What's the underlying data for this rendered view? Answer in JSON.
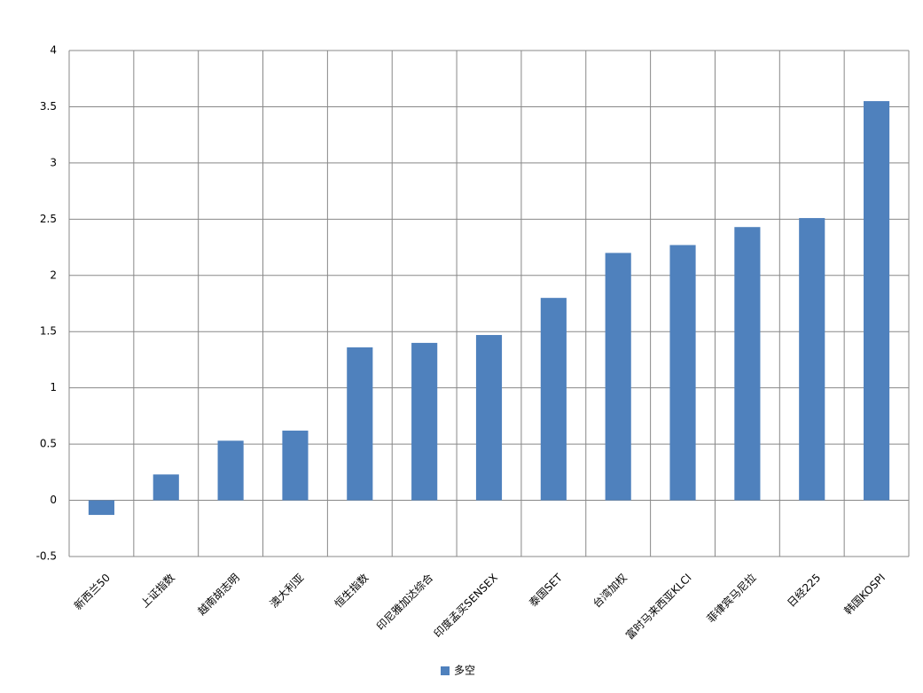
{
  "chart_data": {
    "type": "bar",
    "categories": [
      "新西兰50",
      "上证指数",
      "越南胡志明",
      "澳大利亚",
      "恒生指数",
      "印尼雅加达综合",
      "印度孟买SENSEX",
      "泰国SET",
      "台湾加权",
      "富时马来西亚KLCI",
      "菲律宾马尼拉",
      "日经225",
      "韩国KOSPI"
    ],
    "series": [
      {
        "name": "多空",
        "color": "#4f81bd",
        "values": [
          -0.13,
          0.23,
          0.53,
          0.62,
          1.36,
          1.4,
          1.47,
          1.8,
          2.2,
          2.27,
          2.43,
          2.51,
          3.55
        ]
      }
    ],
    "ylim": [
      -0.5,
      4
    ],
    "yticks": [
      -0.5,
      0,
      0.5,
      1,
      1.5,
      2,
      2.5,
      3,
      3.5,
      4
    ],
    "grid": true
  }
}
